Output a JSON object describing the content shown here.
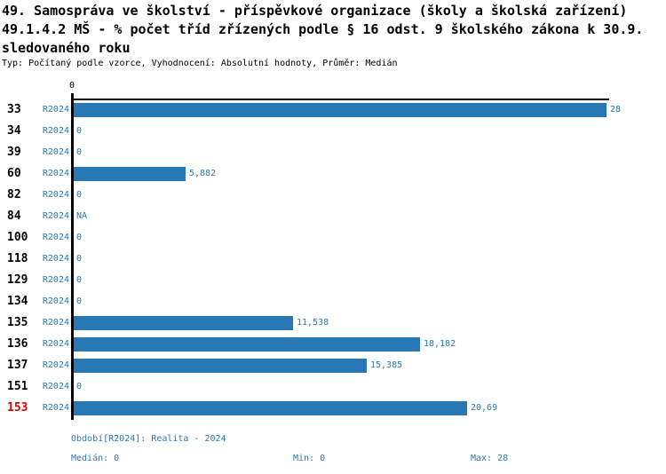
{
  "title": {
    "line1": "49. Samospráva ve školství - příspěvkové organizace (školy a školská zařízení)",
    "line2": "49.1.4.2 MŠ - % počet tříd zřízených podle § 16 odst. 9 školského zákona k 30.9.",
    "line3": "sledovaného roku"
  },
  "meta": "Typ: Počítaný podle vzorce, Vyhodnocení: Absolutní hodnoty, Průměr: Medián",
  "colors": {
    "bar": "#2878b5",
    "blue_text": "#2878b5",
    "highlight": "#e00000",
    "axis": "#000000"
  },
  "chart_data": {
    "type": "bar",
    "orientation": "horizontal",
    "title": "49.1.4.2 MŠ - % počet tříd zřízených podle § 16 odst. 9 školského zákona k 30.9. sledovaného roku",
    "series_name": "R2024",
    "categories": [
      "33",
      "34",
      "39",
      "60",
      "82",
      "84",
      "100",
      "118",
      "129",
      "134",
      "135",
      "136",
      "137",
      "151",
      "153"
    ],
    "values": [
      28,
      0,
      0,
      5.882,
      0,
      null,
      0,
      0,
      0,
      0,
      11.538,
      18.182,
      15.385,
      0,
      20.69
    ],
    "value_labels": [
      "28",
      "0",
      "0",
      "5,882",
      "0",
      "NA",
      "0",
      "0",
      "0",
      "0",
      "11,538",
      "18,182",
      "15,385",
      "0",
      "20,69"
    ],
    "highlighted_categories": [
      "153"
    ],
    "xlim": [
      0,
      28
    ],
    "axis_tick_label": "0",
    "grid": false,
    "legend_position": "none"
  },
  "footer": {
    "period": "Období[R2024]: Realita - 2024",
    "median": "Medián: 0",
    "min": "Min: 0",
    "max": "Max: 28"
  }
}
